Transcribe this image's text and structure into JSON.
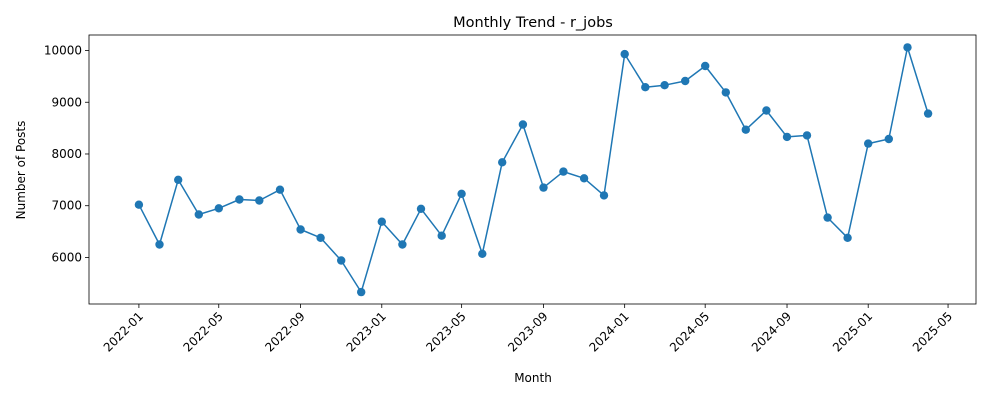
{
  "chart_data": {
    "type": "line",
    "title": "Monthly Trend - r_jobs",
    "xlabel": "Month",
    "ylabel": "Number of Posts",
    "x_range": [
      "2021-10-18",
      "2025-06-12"
    ],
    "ylim": [
      5100,
      10300
    ],
    "x_ticks": [
      "2022-01",
      "2022-05",
      "2022-09",
      "2023-01",
      "2023-05",
      "2023-09",
      "2024-01",
      "2024-05",
      "2024-09",
      "2025-01",
      "2025-05"
    ],
    "y_ticks": [
      6000,
      7000,
      8000,
      9000,
      10000
    ],
    "grid": false,
    "line_color": "#1f77b4",
    "marker": "circle",
    "x": [
      "2022-01",
      "2022-02",
      "2022-03",
      "2022-04",
      "2022-05",
      "2022-06",
      "2022-07",
      "2022-08",
      "2022-09",
      "2022-10",
      "2022-11",
      "2022-12",
      "2023-01",
      "2023-02",
      "2023-03",
      "2023-04",
      "2023-05",
      "2023-06",
      "2023-07",
      "2023-08",
      "2023-09",
      "2023-10",
      "2023-11",
      "2023-12",
      "2024-01",
      "2024-02",
      "2024-03",
      "2024-04",
      "2024-05",
      "2024-06",
      "2024-07",
      "2024-08",
      "2024-09",
      "2024-10",
      "2024-11",
      "2024-12",
      "2025-01",
      "2025-02",
      "2025-03",
      "2025-04"
    ],
    "values": [
      7020,
      6250,
      7500,
      6830,
      6950,
      7120,
      7100,
      7310,
      6540,
      6380,
      5940,
      5330,
      6690,
      6250,
      6940,
      6420,
      7230,
      6070,
      7840,
      8570,
      7350,
      7660,
      7530,
      7200,
      9930,
      9290,
      9330,
      9410,
      9700,
      9190,
      8470,
      8840,
      8330,
      8360,
      6770,
      6380,
      8200,
      8290,
      10060,
      8780
    ]
  }
}
